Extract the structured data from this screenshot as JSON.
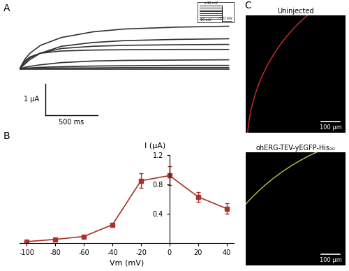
{
  "chart_data": [
    {
      "type": "traces",
      "panel_label": "A",
      "tick_labels": false,
      "color": "#333333",
      "xlim": [
        0,
        2050
      ],
      "ylim": [
        -1.7,
        1.75
      ],
      "x": [
        0,
        50,
        100,
        200,
        400,
        700,
        1000,
        1500,
        2000
      ],
      "series": [
        {
          "values": [
            0,
            0.3,
            0.5,
            0.75,
            1.0,
            1.18,
            1.27,
            1.33,
            1.36
          ]
        },
        {
          "values": [
            0,
            0.15,
            0.3,
            0.5,
            0.72,
            0.84,
            0.9,
            0.94,
            0.96
          ]
        },
        {
          "values": [
            0,
            0.2,
            0.35,
            0.5,
            0.65,
            0.72,
            0.75,
            0.77,
            0.78
          ]
        },
        {
          "values": [
            0,
            0.25,
            0.38,
            0.5,
            0.57,
            0.6,
            0.61,
            0.62,
            0.62
          ]
        },
        {
          "values": [
            0,
            0.05,
            0.08,
            0.13,
            0.2,
            0.25,
            0.27,
            0.28,
            0.29
          ]
        },
        {
          "values": [
            0,
            0.02,
            0.03,
            0.05,
            0.07,
            0.09,
            0.1,
            0.11,
            0.11
          ]
        },
        {
          "values": [
            0,
            0.01,
            0.01,
            0.02,
            0.03,
            0.03,
            0.04,
            0.04,
            0.04
          ]
        },
        {
          "values": [
            0,
            0,
            0,
            0,
            0,
            0,
            0,
            0,
            0
          ]
        }
      ],
      "scale_bars": {
        "current": {
          "value": 1,
          "label": "1 μA"
        },
        "time": {
          "value": 500,
          "label": "500 ms"
        }
      },
      "protocol": {
        "steps": [
          -100,
          -80,
          -60,
          -40,
          -20,
          0,
          20,
          40
        ],
        "tail": -120,
        "labels": [
          "+40 mV",
          "-10 mV",
          "-120 mV"
        ]
      }
    },
    {
      "type": "line",
      "panel_label": "B",
      "x_label": "Vm (mV)",
      "y_label": "I (μA)",
      "color": "#a83228",
      "marker": "square",
      "x": [
        -100,
        -80,
        -60,
        -40,
        -20,
        0,
        20,
        40
      ],
      "values": [
        0.02,
        0.05,
        0.09,
        0.25,
        0.85,
        0.92,
        0.63,
        0.47
      ],
      "errors": [
        0.01,
        0.01,
        0.01,
        0.02,
        0.1,
        0.13,
        0.07,
        0.07
      ],
      "xlim": [
        -105,
        45
      ],
      "ylim": [
        0,
        1.2
      ],
      "xticks": [
        -100,
        -80,
        -60,
        -40,
        -20,
        0,
        20,
        40
      ],
      "yticks": [
        0.4,
        0.8,
        1.2
      ]
    },
    {
      "type": "image",
      "panel_label": "C",
      "title": "Uninjected",
      "color": "#d0302a",
      "scale_bar": {
        "value": 100,
        "label": "100 μm"
      }
    },
    {
      "type": "image",
      "title": "ohERG-TEV-yEGFP-His₁₀",
      "color": "#b8c840",
      "scale_bar": {
        "value": 100,
        "label": "100 μm"
      }
    }
  ]
}
